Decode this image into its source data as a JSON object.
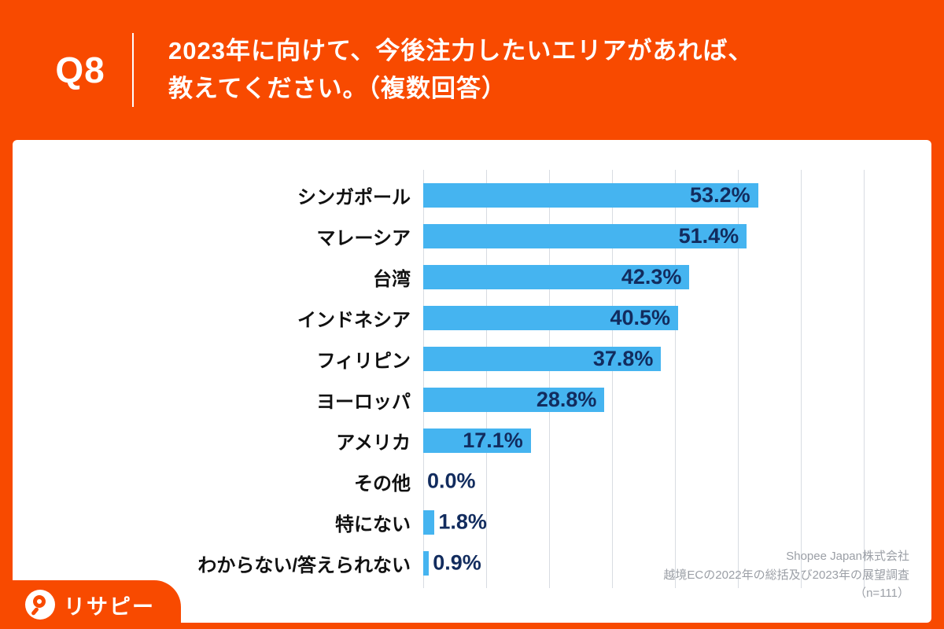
{
  "page": {
    "accent_color": "#f84a00"
  },
  "header": {
    "question_number": "Q8",
    "title_line1": "2023年に向けて、今後注力したいエリアがあれば、",
    "title_line2": "教えてください。（複数回答）"
  },
  "chart_data": {
    "type": "bar",
    "orientation": "horizontal",
    "title": "2023年に向けて、今後注力したいエリアがあれば、教えてください。（複数回答）",
    "categories": [
      "シンガポール",
      "マレーシア",
      "台湾",
      "インドネシア",
      "フィリピン",
      "ヨーロッパ",
      "アメリカ",
      "その他",
      "特にない",
      "わからない/答えられない"
    ],
    "values": [
      53.2,
      51.4,
      42.3,
      40.5,
      37.8,
      28.8,
      17.1,
      0.0,
      1.8,
      0.9
    ],
    "value_labels": [
      "53.2%",
      "51.4%",
      "42.3%",
      "40.5%",
      "37.8%",
      "28.8%",
      "17.1%",
      "0.0%",
      "1.8%",
      "0.9%"
    ],
    "xlim": [
      0,
      70
    ],
    "gridline_step": 10,
    "grid": true,
    "legend": false,
    "bar_color": "#45b4f0",
    "label_color": "#122c5e",
    "grid_color": "#d8dce2"
  },
  "source": {
    "line1": "Shopee Japan株式会社",
    "line2": "越境ECの2022年の総括及び2023年の展望調査",
    "line3": "（n=111）"
  },
  "logo": {
    "text": "リサピー"
  }
}
